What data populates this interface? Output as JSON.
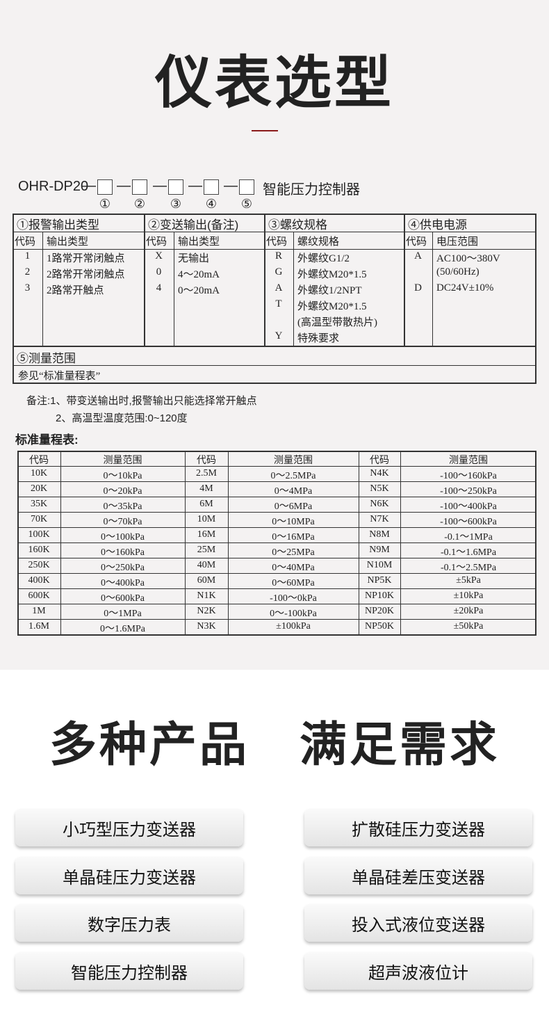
{
  "header": {
    "title": "仪表选型"
  },
  "model": {
    "prefix": "OHR-DP20",
    "dash": "—",
    "suffix": "智能压力控制器",
    "positions": [
      "①",
      "②",
      "③",
      "④",
      "⑤"
    ]
  },
  "selection": {
    "sections": [
      {
        "title": "①报警输出类型",
        "headers": [
          "代码",
          "输出类型"
        ],
        "rows": [
          {
            "code": "1",
            "lines": [
              "1路常开常闭触点"
            ]
          },
          {
            "code": "2",
            "lines": [
              "2路常开常闭触点"
            ]
          },
          {
            "code": "3",
            "lines": [
              "2路常开触点"
            ]
          }
        ]
      },
      {
        "title": "②变送输出(备注)",
        "headers": [
          "代码",
          "输出类型"
        ],
        "rows": [
          {
            "code": "X",
            "lines": [
              "无输出"
            ]
          },
          {
            "code": "0",
            "lines": [
              "4～20mA"
            ]
          },
          {
            "code": "4",
            "lines": [
              "0～20mA"
            ]
          }
        ]
      },
      {
        "title": "③螺纹规格",
        "headers": [
          "代码",
          "螺纹规格"
        ],
        "rows": [
          {
            "code": "R",
            "lines": [
              "外螺纹G1/2"
            ]
          },
          {
            "code": "G",
            "lines": [
              "外螺纹M20*1.5"
            ]
          },
          {
            "code": "A",
            "lines": [
              "外螺纹1/2NPT"
            ]
          },
          {
            "code": "T",
            "lines": [
              "外螺纹M20*1.5",
              "(高温型带散热片)"
            ]
          },
          {
            "code": "Y",
            "lines": [
              "特殊要求"
            ]
          }
        ]
      },
      {
        "title": "④供电电源",
        "headers": [
          "代码",
          "电压范围"
        ],
        "rows": [
          {
            "code": "A",
            "lines": [
              "AC100～380V",
              "(50/60Hz)"
            ]
          },
          {
            "code": "D",
            "lines": [
              "DC24V±10%"
            ]
          }
        ]
      }
    ],
    "range_section": {
      "title": "⑤测量范围",
      "text": "参见“标准量程表”"
    }
  },
  "notes": [
    "备注:1、带变送输出时,报警输出只能选择常开触点",
    "2、高温型温度范围:0~120度"
  ],
  "range_table": {
    "title": "标准量程表:",
    "headers": [
      "代码",
      "测量范围",
      "代码",
      "测量范围",
      "代码",
      "测量范围"
    ],
    "rows": [
      [
        "10K",
        "0～10kPa",
        "2.5M",
        "0～2.5MPa",
        "N4K",
        "-100～160kPa"
      ],
      [
        "20K",
        "0～20kPa",
        "4M",
        "0～4MPa",
        "N5K",
        "-100～250kPa"
      ],
      [
        "35K",
        "0～35kPa",
        "6M",
        "0～6MPa",
        "N6K",
        "-100～400kPa"
      ],
      [
        "70K",
        "0～70kPa",
        "10M",
        "0～10MPa",
        "N7K",
        "-100～600kPa"
      ],
      [
        "100K",
        "0～100kPa",
        "16M",
        "0～16MPa",
        "N8M",
        "-0.1～1MPa"
      ],
      [
        "160K",
        "0～160kPa",
        "25M",
        "0～25MPa",
        "N9M",
        "-0.1～1.6MPa"
      ],
      [
        "250K",
        "0～250kPa",
        "40M",
        "0～40MPa",
        "N10M",
        "-0.1～2.5MPa"
      ],
      [
        "400K",
        "0～400kPa",
        "60M",
        "0～60MPa",
        "NP5K",
        "±5kPa"
      ],
      [
        "600K",
        "0～600kPa",
        "N1K",
        "-100～0kPa",
        "NP10K",
        "±10kPa"
      ],
      [
        "1M",
        "0～1MPa",
        "N2K",
        "0～-100kPa",
        "NP20K",
        "±20kPa"
      ],
      [
        "1.6M",
        "0～1.6MPa",
        "N3K",
        "±100kPa",
        "NP50K",
        "±50kPa"
      ]
    ]
  },
  "products": {
    "title": "多种产品　满足需求",
    "items": [
      "小巧型压力变送器",
      "扩散硅压力变送器",
      "单晶硅压力变送器",
      "单晶硅差压变送器",
      "数字压力表",
      "投入式液位变送器",
      "智能压力控制器",
      "超声波液位计"
    ]
  }
}
